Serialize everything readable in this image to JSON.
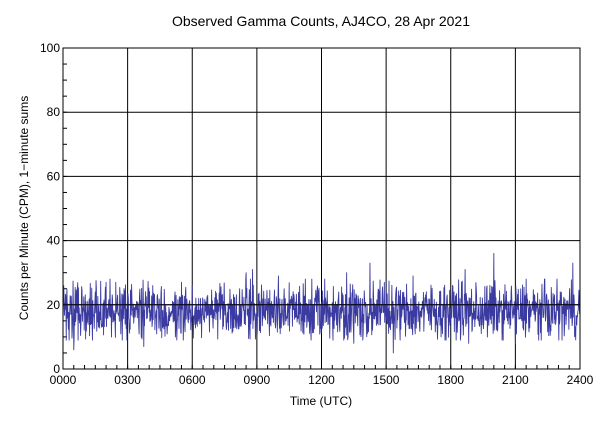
{
  "chart_data": {
    "type": "line",
    "title": "Observed Gamma Counts, AJ4CO, 28 Apr 2021",
    "xlabel": "Time (UTC)",
    "ylabel": "Counts per Minute (CPM), 1−minute sums",
    "xlim": [
      0,
      1440
    ],
    "ylim": [
      0,
      100
    ],
    "x_unit": "minutes of day (UTC)",
    "x_ticks": [
      {
        "value": 0,
        "label": "0000"
      },
      {
        "value": 180,
        "label": "0300"
      },
      {
        "value": 360,
        "label": "0600"
      },
      {
        "value": 540,
        "label": "0900"
      },
      {
        "value": 720,
        "label": "1200"
      },
      {
        "value": 900,
        "label": "1500"
      },
      {
        "value": 1080,
        "label": "1800"
      },
      {
        "value": 1260,
        "label": "2100"
      },
      {
        "value": 1440,
        "label": "2400"
      }
    ],
    "y_ticks": [
      {
        "value": 0,
        "label": "0"
      },
      {
        "value": 20,
        "label": "20"
      },
      {
        "value": 40,
        "label": "40"
      },
      {
        "value": 60,
        "label": "60"
      },
      {
        "value": 80,
        "label": "80"
      },
      {
        "value": 100,
        "label": "100"
      }
    ],
    "grid": true,
    "reference_line": {
      "y": 20,
      "color": "#000000"
    },
    "series": [
      {
        "color": "#3a3aa0",
        "sampling": "1-minute sums, 1440 points, noisy around mean ~18 CPM (range ~5-36)",
        "mean": 18,
        "min": 5,
        "max": 36,
        "peaks": [
          {
            "x": 40,
            "y": 25
          },
          {
            "x": 120,
            "y": 27
          },
          {
            "x": 250,
            "y": 26
          },
          {
            "x": 330,
            "y": 27
          },
          {
            "x": 510,
            "y": 30
          },
          {
            "x": 528,
            "y": 31
          },
          {
            "x": 600,
            "y": 29
          },
          {
            "x": 675,
            "y": 28
          },
          {
            "x": 790,
            "y": 30
          },
          {
            "x": 855,
            "y": 33
          },
          {
            "x": 895,
            "y": 27
          },
          {
            "x": 975,
            "y": 29
          },
          {
            "x": 1120,
            "y": 31
          },
          {
            "x": 1200,
            "y": 36
          },
          {
            "x": 1290,
            "y": 28
          },
          {
            "x": 1420,
            "y": 33
          }
        ],
        "troughs": [
          {
            "x": 30,
            "y": 6
          },
          {
            "x": 225,
            "y": 7
          },
          {
            "x": 810,
            "y": 8
          },
          {
            "x": 920,
            "y": 5
          },
          {
            "x": 1130,
            "y": 8
          },
          {
            "x": 1260,
            "y": 8
          }
        ]
      }
    ]
  }
}
